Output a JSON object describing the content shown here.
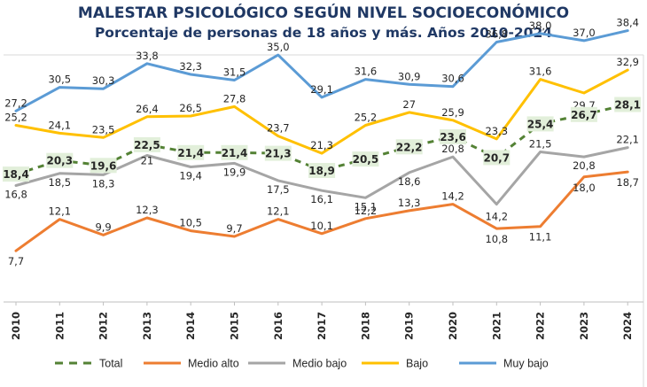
{
  "header": {
    "title": "MALESTAR PSICOLÓGICO SEGÚN NIVEL SOCIOECONÓMICO",
    "subtitle": "Porcentaje de personas de 18 años y más. Años 2010-2024"
  },
  "chart_data": {
    "type": "line",
    "x": [
      "2010",
      "2011",
      "2012",
      "2013",
      "2014",
      "2015",
      "2016",
      "2017",
      "2018",
      "2019",
      "2020",
      "2021",
      "2022",
      "2023",
      "2024"
    ],
    "ylim": [
      0,
      45
    ],
    "grid": false,
    "legend_position": "bottom",
    "series": [
      {
        "name": "Muy bajo",
        "color": "#5b9bd5",
        "dashed": false,
        "values": [
          27.2,
          30.5,
          30.3,
          33.8,
          32.3,
          31.5,
          35.0,
          29.1,
          31.6,
          30.9,
          30.6,
          36.8,
          38.0,
          37.0,
          38.4
        ],
        "labels": [
          "27,2",
          "30,5",
          "30,3",
          "33,8",
          "32,3",
          "31,5",
          "35,0",
          "29,1",
          "31,6",
          "30,9",
          "30,6",
          "36,8",
          "38,0",
          "37,0",
          "38,4"
        ]
      },
      {
        "name": "Bajo",
        "color": "#ffc000",
        "dashed": false,
        "values": [
          25.2,
          24.1,
          23.5,
          26.4,
          26.5,
          27.8,
          23.7,
          21.3,
          25.2,
          27.0,
          25.9,
          23.3,
          31.6,
          29.7,
          32.9
        ],
        "labels": [
          "25,2",
          "24,1",
          "23,5",
          "26,4",
          "26,5",
          "27,8",
          "23,7",
          "21,3",
          "25,2",
          "27",
          "25,9",
          "23,3",
          "31,6",
          "29,7",
          "32,9"
        ]
      },
      {
        "name": "Medio bajo",
        "color": "#a5a5a5",
        "dashed": false,
        "values": [
          16.8,
          18.5,
          18.3,
          21.0,
          19.4,
          19.9,
          17.5,
          16.1,
          15.1,
          18.6,
          20.8,
          14.2,
          21.5,
          20.8,
          22.1
        ],
        "labels": [
          "16,8",
          "18,5",
          "18,3",
          "21",
          "19,4",
          "19,9",
          "17,5",
          "16,1",
          "15,1",
          "18,6",
          "20,8",
          "14,2",
          "21,5",
          "20,8",
          "22,1"
        ]
      },
      {
        "name": "Medio alto",
        "color": "#ed7d31",
        "dashed": false,
        "values": [
          7.7,
          12.1,
          9.9,
          12.3,
          10.5,
          9.7,
          12.1,
          10.1,
          12.2,
          13.3,
          14.2,
          10.8,
          11.1,
          18.0,
          18.7
        ],
        "labels": [
          "7,7",
          "12,1",
          "9,9",
          "12,3",
          "10,5",
          "9,7",
          "12,1",
          "10,1",
          "12,2",
          "13,3",
          "14,2",
          "10,8",
          "11,1",
          "18,0",
          "18,7"
        ]
      },
      {
        "name": "Total",
        "color": "#548235",
        "dashed": true,
        "values": [
          18.4,
          20.3,
          19.6,
          22.5,
          21.4,
          21.4,
          21.3,
          18.9,
          20.5,
          22.2,
          23.6,
          20.7,
          25.4,
          26.7,
          28.1
        ],
        "labels": [
          "18,4",
          "20,3",
          "19,6",
          "22,5",
          "21,4",
          "21,4",
          "21,3",
          "18,9",
          "20,5",
          "22,2",
          "23,6",
          "20,7",
          "25,4",
          "26,7",
          "28,1"
        ]
      }
    ],
    "legend_order": [
      "Total",
      "Medio alto",
      "Medio bajo",
      "Bajo",
      "Muy bajo"
    ],
    "colors": {
      "total_label_bg": "#e2efda",
      "title": "#1f3864"
    }
  }
}
